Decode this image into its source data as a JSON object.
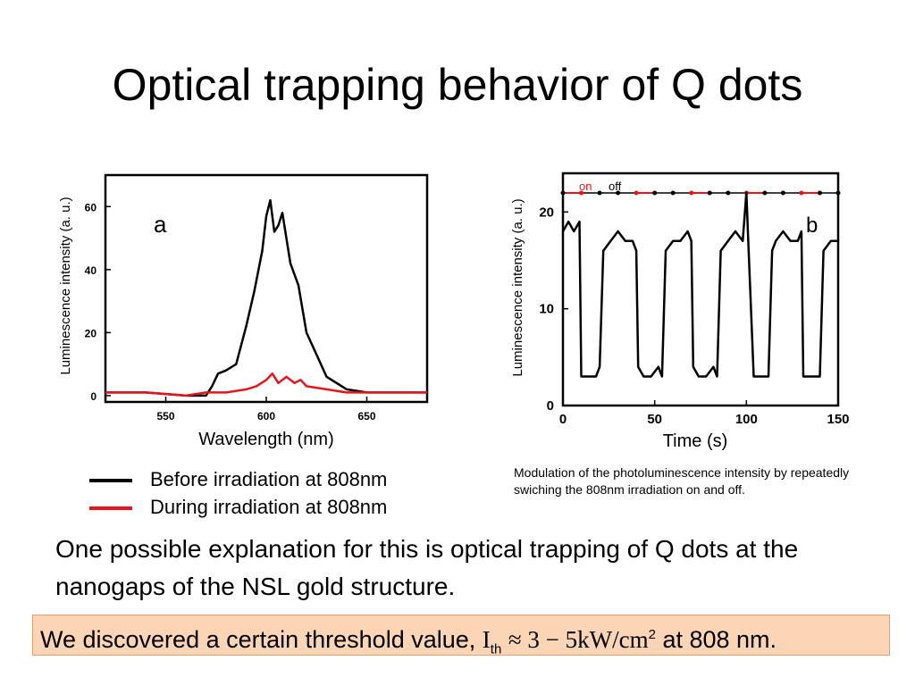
{
  "slide": {
    "title": "Optical trapping behavior of Q dots",
    "legend": [
      {
        "label": "Before irradiation at 808nm",
        "color": "#000000"
      },
      {
        "label": "During irradiation at 808nm",
        "color": "#e8141a"
      }
    ],
    "caption": "Modulation of the photoluminescence intensity by repeatedly swiching the 808nm irradiation on and off.",
    "explanation": "One possible explanation for this is optical trapping of Q dots at the nanogaps of the NSL gold structure.",
    "threshold": {
      "prefix": "We discovered a certain threshold value,",
      "symbol": "I",
      "subscript": "th",
      "relation": "≈ 3 − 5kW/cm",
      "superscript": "2",
      "suffix": "at 808 nm.",
      "background": "#fbd5b5"
    }
  },
  "chart_data": [
    {
      "type": "line",
      "panel_label": "a",
      "xlabel": "Wavelength (nm)",
      "ylabel": "Luminescence intensity  (a. u.)",
      "xlim": [
        520,
        680
      ],
      "ylim": [
        -2,
        70
      ],
      "xticks": [
        550,
        600,
        650
      ],
      "yticks": [
        0,
        20,
        40,
        60
      ],
      "series": [
        {
          "name": "Before irradiation at 808nm",
          "color": "#000000",
          "x": [
            520,
            540,
            560,
            570,
            573,
            576,
            580,
            585,
            590,
            594,
            598,
            600,
            602,
            604,
            606,
            608,
            612,
            616,
            620,
            625,
            630,
            640,
            650,
            660,
            680
          ],
          "y": [
            1,
            1,
            0,
            0,
            3,
            7,
            8,
            10,
            22,
            33,
            46,
            57,
            62,
            52,
            54,
            58,
            42,
            35,
            20,
            13,
            6,
            2,
            1,
            1,
            1
          ]
        },
        {
          "name": "During irradiation at 808nm",
          "color": "#e8141a",
          "x": [
            520,
            540,
            560,
            570,
            580,
            590,
            595,
            600,
            603,
            606,
            610,
            614,
            617,
            620,
            630,
            640,
            650,
            660,
            680
          ],
          "y": [
            1,
            1,
            0,
            1,
            1,
            2,
            3,
            5,
            7,
            4,
            6,
            4,
            5,
            3,
            2,
            1,
            1,
            1,
            1
          ]
        }
      ]
    },
    {
      "type": "line",
      "panel_label": "b",
      "xlabel": "Time (s)",
      "ylabel": "Luminescence intensity  (a. u.)",
      "xlim": [
        0,
        150
      ],
      "ylim": [
        0,
        24
      ],
      "xticks": [
        0,
        50,
        100,
        150
      ],
      "yticks": [
        0,
        10,
        20
      ],
      "annotations": {
        "on": "on",
        "off": "off"
      },
      "series": [
        {
          "name": "",
          "color": "#000000",
          "x": [
            0,
            3,
            6,
            9,
            10,
            11,
            14,
            18,
            20,
            22,
            26,
            30,
            34,
            38,
            40,
            41,
            44,
            48,
            52,
            54,
            56,
            60,
            64,
            68,
            70,
            71,
            74,
            78,
            82,
            84,
            86,
            90,
            94,
            98,
            100,
            101,
            104,
            108,
            112,
            114,
            116,
            120,
            124,
            128,
            130,
            131,
            134,
            138,
            140,
            142,
            146,
            150
          ],
          "y": [
            18,
            19,
            18,
            19,
            3,
            3,
            3,
            3,
            4,
            16,
            17,
            18,
            17,
            17,
            16,
            4,
            3,
            3,
            4,
            3,
            16,
            17,
            17,
            18,
            17,
            4,
            3,
            3,
            4,
            3,
            16,
            17,
            18,
            17,
            22,
            17,
            3,
            3,
            3,
            16,
            17,
            18,
            17,
            17,
            18,
            3,
            3,
            3,
            3,
            16,
            17,
            17
          ]
        }
      ]
    }
  ]
}
